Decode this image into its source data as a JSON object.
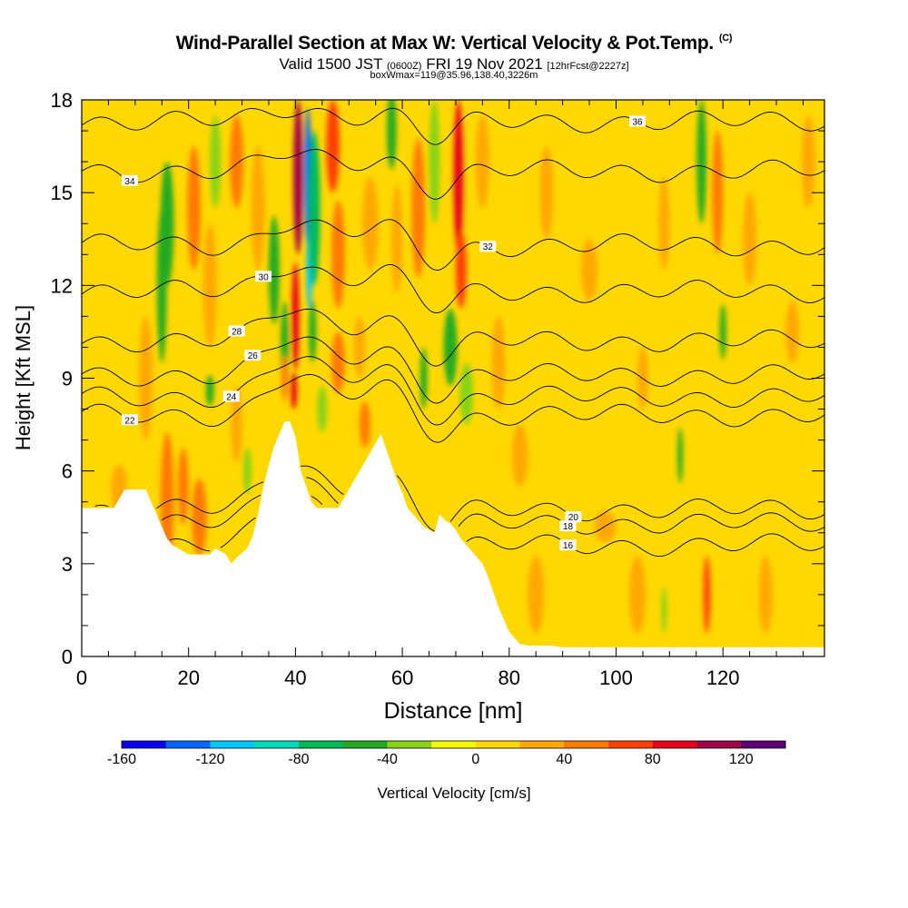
{
  "header": {
    "title": "Wind-Parallel Section at Max W: Vertical Velocity & Pot.Temp.",
    "title_mark": "(C)",
    "subtitle_pre": "Valid 1500 JST",
    "subtitle_utc": "(0600Z)",
    "subtitle_date": "FRI 19 Nov 2021",
    "subtitle_fcst": "[12hrFcst@2227z]",
    "subtitle2": "boxWmax=119@35.96,138.40,3226m"
  },
  "chart_data": {
    "type": "heatmap",
    "xlabel": "Distance [nm]",
    "ylabel": "Height [Kft MSL]",
    "xlim": [
      0,
      139
    ],
    "ylim": [
      0,
      18
    ],
    "x_ticks": [
      0,
      20,
      40,
      60,
      80,
      100,
      120
    ],
    "y_ticks": [
      0,
      3,
      6,
      9,
      12,
      15,
      18
    ],
    "background_value": 10,
    "terrain": [
      [
        0,
        4.8
      ],
      [
        6,
        4.8
      ],
      [
        7,
        5.1
      ],
      [
        8,
        5.4
      ],
      [
        12,
        5.4
      ],
      [
        13,
        5.0
      ],
      [
        14,
        4.6
      ],
      [
        15,
        4.2
      ],
      [
        16,
        3.8
      ],
      [
        17,
        3.6
      ],
      [
        18,
        3.5
      ],
      [
        20,
        3.3
      ],
      [
        24,
        3.3
      ],
      [
        25,
        3.5
      ],
      [
        27,
        3.3
      ],
      [
        28,
        3.0
      ],
      [
        29,
        3.2
      ],
      [
        31,
        3.5
      ],
      [
        32,
        3.9
      ],
      [
        33,
        4.6
      ],
      [
        34,
        5.5
      ],
      [
        35,
        6.2
      ],
      [
        36,
        6.8
      ],
      [
        37,
        7.2
      ],
      [
        38,
        7.6
      ],
      [
        39,
        7.6
      ],
      [
        40,
        7.1
      ],
      [
        40.5,
        6.6
      ],
      [
        41,
        6.0
      ],
      [
        42,
        5.5
      ],
      [
        43,
        5.0
      ],
      [
        44,
        4.8
      ],
      [
        48,
        4.8
      ],
      [
        49,
        5.1
      ],
      [
        50,
        5.4
      ],
      [
        51,
        5.7
      ],
      [
        52,
        6.0
      ],
      [
        53,
        6.3
      ],
      [
        54,
        6.6
      ],
      [
        55,
        6.9
      ],
      [
        56,
        7.2
      ],
      [
        57,
        6.7
      ],
      [
        58,
        6.2
      ],
      [
        59,
        5.7
      ],
      [
        60,
        5.3
      ],
      [
        61,
        4.8
      ],
      [
        62,
        4.6
      ],
      [
        63,
        4.4
      ],
      [
        64,
        4.2
      ],
      [
        65,
        4.1
      ],
      [
        66,
        4.0
      ],
      [
        67,
        4.6
      ],
      [
        68,
        4.4
      ],
      [
        69,
        4.3
      ],
      [
        70,
        4.1
      ],
      [
        71,
        3.8
      ],
      [
        72,
        3.6
      ],
      [
        73,
        3.4
      ],
      [
        74,
        3.2
      ],
      [
        75,
        3.0
      ],
      [
        76,
        2.6
      ],
      [
        77,
        2.1
      ],
      [
        78,
        1.6
      ],
      [
        79,
        1.2
      ],
      [
        80,
        0.8
      ],
      [
        81,
        0.6
      ],
      [
        82,
        0.4
      ],
      [
        84,
        0.35
      ],
      [
        88,
        0.35
      ],
      [
        90,
        0.3
      ],
      [
        139,
        0.3
      ]
    ],
    "cells": [
      {
        "x": 7,
        "z": 5.4,
        "w": 3,
        "h": 1.6,
        "value": 30
      },
      {
        "x": 12,
        "z": 9.0,
        "w": 2.5,
        "h": 4.0,
        "value": 30
      },
      {
        "x": 16,
        "z": 14.0,
        "w": 2.5,
        "h": 4.0,
        "value": -50
      },
      {
        "x": 15,
        "z": 12.0,
        "w": 1.8,
        "h": 5.0,
        "value": -50
      },
      {
        "x": 16,
        "z": 5.0,
        "w": 2.5,
        "h": 4.5,
        "value": 40
      },
      {
        "x": 19,
        "z": 5.5,
        "w": 2,
        "h": 2.5,
        "value": 50
      },
      {
        "x": 21,
        "z": 14.5,
        "w": 2.5,
        "h": 4.0,
        "value": 55
      },
      {
        "x": 22,
        "z": 4.5,
        "w": 2.8,
        "h": 2.5,
        "value": 40
      },
      {
        "x": 25,
        "z": 16.0,
        "w": 2,
        "h": 3.0,
        "value": -35
      },
      {
        "x": 24,
        "z": 12.0,
        "w": 2.5,
        "h": 4.0,
        "value": 25
      },
      {
        "x": 24,
        "z": 8.6,
        "w": 1.5,
        "h": 1.0,
        "value": -45
      },
      {
        "x": 29,
        "z": 16.0,
        "w": 2.5,
        "h": 3.0,
        "value": 40
      },
      {
        "x": 29,
        "z": 7.5,
        "w": 2,
        "h": 2.5,
        "value": 30
      },
      {
        "x": 31,
        "z": 6.0,
        "w": 1.5,
        "h": 1.5,
        "value": -40
      },
      {
        "x": 33,
        "z": 14.5,
        "w": 2.5,
        "h": 4.0,
        "value": 35
      },
      {
        "x": 36,
        "z": 12.5,
        "w": 2.0,
        "h": 3.5,
        "value": -45
      },
      {
        "x": 38,
        "z": 10.0,
        "w": 1.5,
        "h": 3.0,
        "value": -50
      },
      {
        "x": 38,
        "z": 9.0,
        "w": 1.2,
        "h": 1.5,
        "value": 40
      },
      {
        "x": 40.5,
        "z": 15.5,
        "w": 1.8,
        "h": 5.0,
        "value": 110
      },
      {
        "x": 40.0,
        "z": 11.0,
        "w": 1.4,
        "h": 3.5,
        "value": 90
      },
      {
        "x": 39.7,
        "z": 8.6,
        "w": 1.2,
        "h": 1.2,
        "value": 95
      },
      {
        "x": 42.3,
        "z": 15.5,
        "w": 1.3,
        "h": 4.5,
        "value": -135
      },
      {
        "x": 42.6,
        "z": 12.5,
        "w": 1.1,
        "h": 2.5,
        "value": -110
      },
      {
        "x": 43.5,
        "z": 14.5,
        "w": 2.2,
        "h": 5.0,
        "value": -80
      },
      {
        "x": 43.2,
        "z": 10.5,
        "w": 1.4,
        "h": 2.0,
        "value": -60
      },
      {
        "x": 47,
        "z": 16.5,
        "w": 2.5,
        "h": 3.0,
        "value": 70
      },
      {
        "x": 48,
        "z": 13.0,
        "w": 2.5,
        "h": 3.5,
        "value": 50
      },
      {
        "x": 48,
        "z": 9.5,
        "w": 2.5,
        "h": 2.0,
        "value": 45
      },
      {
        "x": 45,
        "z": 8.0,
        "w": 1.8,
        "h": 1.5,
        "value": -40
      },
      {
        "x": 52,
        "z": 10.0,
        "w": 2,
        "h": 2.0,
        "value": 30
      },
      {
        "x": 53,
        "z": 7.5,
        "w": 2,
        "h": 1.5,
        "value": 55
      },
      {
        "x": 54,
        "z": 14.0,
        "w": 3,
        "h": 3.0,
        "value": 35
      },
      {
        "x": 58,
        "z": 17.0,
        "w": 1.8,
        "h": 2.5,
        "value": -55
      },
      {
        "x": 59,
        "z": 13.5,
        "w": 2,
        "h": 3.5,
        "value": 30
      },
      {
        "x": 63,
        "z": 14.5,
        "w": 2.5,
        "h": 4.5,
        "value": 40
      },
      {
        "x": 64,
        "z": 9.0,
        "w": 1.3,
        "h": 2.0,
        "value": -50
      },
      {
        "x": 66,
        "z": 16.0,
        "w": 2,
        "h": 4.0,
        "value": -40
      },
      {
        "x": 69,
        "z": 10.0,
        "w": 2.5,
        "h": 2.5,
        "value": -45
      },
      {
        "x": 72,
        "z": 8.5,
        "w": 2.5,
        "h": 2.0,
        "value": -35
      },
      {
        "x": 70.5,
        "z": 15.5,
        "w": 1.8,
        "h": 5.0,
        "value": 85
      },
      {
        "x": 71,
        "z": 12.5,
        "w": 2.0,
        "h": 2.5,
        "value": 60
      },
      {
        "x": 75,
        "z": 16.0,
        "w": 2.5,
        "h": 3.0,
        "value": 30
      },
      {
        "x": 78,
        "z": 9.5,
        "w": 2.5,
        "h": 3.0,
        "value": 25
      },
      {
        "x": 82,
        "z": 6.5,
        "w": 3,
        "h": 2.0,
        "value": 25
      },
      {
        "x": 85,
        "z": 2.0,
        "w": 3,
        "h": 2.5,
        "value": 30
      },
      {
        "x": 87,
        "z": 15.0,
        "w": 2.5,
        "h": 3.0,
        "value": 30
      },
      {
        "x": 95,
        "z": 12.5,
        "w": 3,
        "h": 2.0,
        "value": 25
      },
      {
        "x": 98,
        "z": 4.2,
        "w": 4,
        "h": 1.0,
        "value": 25
      },
      {
        "x": 104,
        "z": 2.0,
        "w": 3,
        "h": 2.5,
        "value": 25
      },
      {
        "x": 105,
        "z": 9.0,
        "w": 2,
        "h": 2.0,
        "value": 25
      },
      {
        "x": 109,
        "z": 14.0,
        "w": 2,
        "h": 3.0,
        "value": 30
      },
      {
        "x": 109,
        "z": 1.5,
        "w": 1.0,
        "h": 1.5,
        "value": -40
      },
      {
        "x": 112,
        "z": 6.5,
        "w": 1.0,
        "h": 1.8,
        "value": -45
      },
      {
        "x": 116,
        "z": 16.0,
        "w": 1.8,
        "h": 4.0,
        "value": -45
      },
      {
        "x": 117,
        "z": 2.0,
        "w": 1.3,
        "h": 2.5,
        "value": 60
      },
      {
        "x": 119,
        "z": 15.0,
        "w": 2.0,
        "h": 4.0,
        "value": 45
      },
      {
        "x": 120,
        "z": 10.5,
        "w": 1.2,
        "h": 1.8,
        "value": -45
      },
      {
        "x": 125,
        "z": 13.5,
        "w": 2.5,
        "h": 3.0,
        "value": 30
      },
      {
        "x": 128,
        "z": 2.0,
        "w": 2.5,
        "h": 2.5,
        "value": 30
      },
      {
        "x": 133,
        "z": 10.5,
        "w": 2.5,
        "h": 2.0,
        "value": 25
      },
      {
        "x": 136,
        "z": 16.0,
        "w": 2.5,
        "h": 3.0,
        "value": 25
      }
    ],
    "theta_contours": [
      {
        "label": "16",
        "base": 3.6,
        "label_at": [
          91,
          3.6
        ]
      },
      {
        "label": "18",
        "base": 4.3,
        "label_at": [
          91,
          4.3
        ]
      },
      {
        "label": "20",
        "base": 4.75,
        "label_at": [
          92,
          4.75
        ]
      },
      {
        "label": "22",
        "base": 7.8,
        "label_at": [
          9,
          7.8
        ]
      },
      {
        "label": "24",
        "base": 8.4,
        "label_at": [
          28,
          8.4
        ]
      },
      {
        "label": "26",
        "base": 9.1,
        "label_at": [
          32,
          9.1
        ]
      },
      {
        "label": "28",
        "base": 10.2,
        "label_at": [
          29,
          10.2
        ]
      },
      {
        "label": "30",
        "base": 11.8,
        "label_at": [
          34,
          11.8
        ]
      },
      {
        "label": "32",
        "base": 13.3,
        "label_at": [
          76,
          13.3
        ]
      },
      {
        "label": "34",
        "base": 15.7,
        "label_at": [
          9,
          15.7
        ]
      },
      {
        "label": "36",
        "base": 17.3,
        "label_at": [
          104,
          17.3
        ]
      }
    ],
    "colorbar": {
      "label": "Vertical Velocity [cm/s]",
      "bins": [
        -160,
        -140,
        -120,
        -100,
        -80,
        -60,
        -40,
        -20,
        0,
        20,
        40,
        60,
        80,
        100,
        120,
        140
      ],
      "colors": [
        "#0a00f0",
        "#0066ff",
        "#00c8ff",
        "#00d9bb",
        "#00bb55",
        "#21aa21",
        "#88d318",
        "#f4f800",
        "#ffd800",
        "#ffa800",
        "#ff7a00",
        "#ff4000",
        "#e8001a",
        "#a0004a",
        "#5a0078"
      ],
      "tick_labels": [
        "-160",
        "-120",
        "-80",
        "-40",
        "0",
        "40",
        "80",
        "120"
      ]
    }
  }
}
